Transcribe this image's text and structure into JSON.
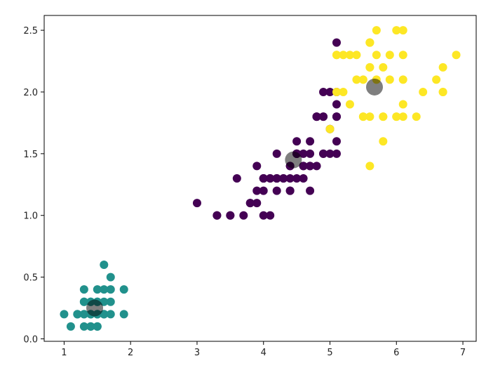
{
  "chart_data": {
    "type": "scatter",
    "title": "",
    "xlabel": "",
    "ylabel": "",
    "xlim": [
      0.7,
      7.2
    ],
    "ylim": [
      -0.02,
      2.62
    ],
    "xticks": [
      "1",
      "2",
      "3",
      "4",
      "5",
      "6",
      "7"
    ],
    "yticks": [
      "0.0",
      "0.5",
      "1.0",
      "1.5",
      "2.0",
      "2.5"
    ],
    "grid": false,
    "legend": "none",
    "series": [
      {
        "color": "#440154",
        "points": [
          [
            4.7,
            1.4
          ],
          [
            4.5,
            1.5
          ],
          [
            4.9,
            1.5
          ],
          [
            4.0,
            1.3
          ],
          [
            4.6,
            1.5
          ],
          [
            4.5,
            1.3
          ],
          [
            4.7,
            1.6
          ],
          [
            3.3,
            1.0
          ],
          [
            4.6,
            1.3
          ],
          [
            3.9,
            1.4
          ],
          [
            3.5,
            1.0
          ],
          [
            4.2,
            1.5
          ],
          [
            4.0,
            1.0
          ],
          [
            4.7,
            1.4
          ],
          [
            3.6,
            1.3
          ],
          [
            4.4,
            1.4
          ],
          [
            4.5,
            1.5
          ],
          [
            4.1,
            1.0
          ],
          [
            4.5,
            1.5
          ],
          [
            3.9,
            1.1
          ],
          [
            4.8,
            1.8
          ],
          [
            4.0,
            1.3
          ],
          [
            4.9,
            1.5
          ],
          [
            4.7,
            1.2
          ],
          [
            4.3,
            1.3
          ],
          [
            4.4,
            1.4
          ],
          [
            4.8,
            1.4
          ],
          [
            5.0,
            1.7
          ],
          [
            4.5,
            1.5
          ],
          [
            3.5,
            1.0
          ],
          [
            3.8,
            1.1
          ],
          [
            3.7,
            1.0
          ],
          [
            3.9,
            1.2
          ],
          [
            5.1,
            1.6
          ],
          [
            4.5,
            1.5
          ],
          [
            4.5,
            1.6
          ],
          [
            4.7,
            1.5
          ],
          [
            4.4,
            1.3
          ],
          [
            4.1,
            1.3
          ],
          [
            4.0,
            1.3
          ],
          [
            4.4,
            1.2
          ],
          [
            4.6,
            1.4
          ],
          [
            4.0,
            1.2
          ],
          [
            3.3,
            1.0
          ],
          [
            4.2,
            1.3
          ],
          [
            4.2,
            1.2
          ],
          [
            4.2,
            1.3
          ],
          [
            4.3,
            1.3
          ],
          [
            3.0,
            1.1
          ],
          [
            4.1,
            1.3
          ],
          [
            5.1,
            1.9
          ],
          [
            5.0,
            2.0
          ],
          [
            4.9,
            2.0
          ],
          [
            4.8,
            1.8
          ],
          [
            4.9,
            1.8
          ],
          [
            5.1,
            2.4
          ],
          [
            4.9,
            1.8
          ],
          [
            5.1,
            2.0
          ],
          [
            5.1,
            1.5
          ],
          [
            5.0,
            1.5
          ],
          [
            4.8,
            1.8
          ],
          [
            5.1,
            1.8
          ],
          [
            4.6,
            1.4
          ],
          [
            4.2,
            1.3
          ],
          [
            3.8,
            1.1
          ],
          [
            4.4,
            1.2
          ],
          [
            5.1,
            1.8
          ]
        ]
      },
      {
        "color": "#21918c",
        "points": [
          [
            1.4,
            0.2
          ],
          [
            1.3,
            0.2
          ],
          [
            1.5,
            0.2
          ],
          [
            1.4,
            0.2
          ],
          [
            1.7,
            0.4
          ],
          [
            1.4,
            0.3
          ],
          [
            1.5,
            0.2
          ],
          [
            1.5,
            0.1
          ],
          [
            1.6,
            0.2
          ],
          [
            1.4,
            0.1
          ],
          [
            1.1,
            0.1
          ],
          [
            1.2,
            0.2
          ],
          [
            1.5,
            0.4
          ],
          [
            1.3,
            0.4
          ],
          [
            1.7,
            0.3
          ],
          [
            1.5,
            0.3
          ],
          [
            1.0,
            0.2
          ],
          [
            1.7,
            0.5
          ],
          [
            1.9,
            0.2
          ],
          [
            1.6,
            0.4
          ],
          [
            1.6,
            0.2
          ],
          [
            1.5,
            0.2
          ],
          [
            1.4,
            0.2
          ],
          [
            1.6,
            0.2
          ],
          [
            1.2,
            0.2
          ],
          [
            1.3,
            0.2
          ],
          [
            1.4,
            0.3
          ],
          [
            1.3,
            0.3
          ],
          [
            1.6,
            0.6
          ],
          [
            1.9,
            0.4
          ],
          [
            1.6,
            0.3
          ],
          [
            1.5,
            0.1
          ],
          [
            1.4,
            0.1
          ],
          [
            1.2,
            0.2
          ],
          [
            1.3,
            0.1
          ],
          [
            1.5,
            0.3
          ],
          [
            1.5,
            0.2
          ],
          [
            1.7,
            0.2
          ],
          [
            1.3,
            0.3
          ],
          [
            1.4,
            0.2
          ]
        ]
      },
      {
        "color": "#fde725",
        "points": [
          [
            6.0,
            2.5
          ],
          [
            5.9,
            2.1
          ],
          [
            5.6,
            1.8
          ],
          [
            5.8,
            2.2
          ],
          [
            6.6,
            2.1
          ],
          [
            6.3,
            1.8
          ],
          [
            5.8,
            1.8
          ],
          [
            6.1,
            2.5
          ],
          [
            5.1,
            2.0
          ],
          [
            5.3,
            1.9
          ],
          [
            5.5,
            2.1
          ],
          [
            5.3,
            2.3
          ],
          [
            5.5,
            1.8
          ],
          [
            6.7,
            2.2
          ],
          [
            6.9,
            2.3
          ],
          [
            5.7,
            2.3
          ],
          [
            6.7,
            2.0
          ],
          [
            5.7,
            2.1
          ],
          [
            6.0,
            1.8
          ],
          [
            5.6,
            2.4
          ],
          [
            5.8,
            1.6
          ],
          [
            6.1,
            1.9
          ],
          [
            6.4,
            2.0
          ],
          [
            5.6,
            2.2
          ],
          [
            5.6,
            1.4
          ],
          [
            6.1,
            2.3
          ],
          [
            5.6,
            2.4
          ],
          [
            5.5,
            1.8
          ],
          [
            5.4,
            2.1
          ],
          [
            5.6,
            2.4
          ],
          [
            5.1,
            2.3
          ],
          [
            5.9,
            2.3
          ],
          [
            5.7,
            2.5
          ],
          [
            5.2,
            2.3
          ],
          [
            5.4,
            2.3
          ],
          [
            6.7,
            2.0
          ],
          [
            6.1,
            1.8
          ],
          [
            5.2,
            2.0
          ],
          [
            5.8,
            1.8
          ],
          [
            5.0,
            1.7
          ],
          [
            6.0,
            1.8
          ],
          [
            5.6,
            2.2
          ],
          [
            6.1,
            2.1
          ],
          [
            5.1,
            2.3
          ]
        ]
      }
    ],
    "centroids": {
      "color": "#000000",
      "opacity": 0.5,
      "points": [
        [
          1.46,
          0.25
        ],
        [
          4.45,
          1.45
        ],
        [
          5.67,
          2.04
        ]
      ]
    }
  }
}
